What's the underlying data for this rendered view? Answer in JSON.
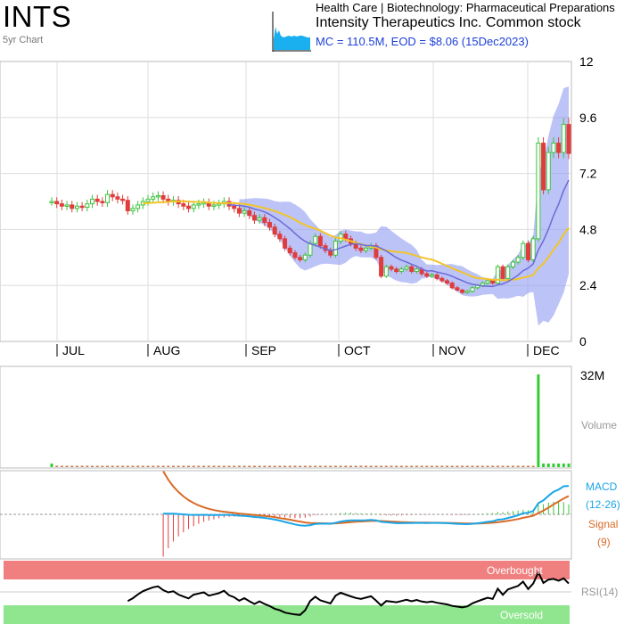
{
  "header": {
    "ticker": "INTS",
    "period_label": "5yr Chart",
    "sector": "Health Care | Biotechnology: Pharmaceutical Preparations",
    "company": "Intensity Therapeutics Inc. Common stock",
    "mc_line": "MC = 110.5M, EOD = $8.06 (15Dec2023)"
  },
  "chart_data": {
    "type": "candlestick",
    "price_axis": {
      "ticks": [
        "0",
        "2.4",
        "4.8",
        "7.2",
        "9.6",
        "12"
      ],
      "ylim": [
        0,
        12
      ]
    },
    "months": [
      "JUL",
      "AUG",
      "SEP",
      "OCT",
      "NOV",
      "DEC"
    ],
    "close_by_day": [
      6.0,
      5.9,
      5.8,
      5.85,
      5.7,
      5.8,
      5.75,
      5.9,
      6.1,
      6.0,
      5.95,
      6.3,
      6.2,
      6.1,
      6.05,
      5.6,
      5.7,
      5.85,
      6.0,
      6.1,
      6.2,
      6.25,
      6.1,
      6.0,
      6.05,
      5.9,
      5.8,
      5.7,
      5.85,
      5.9,
      5.95,
      5.8,
      5.85,
      5.9,
      6.0,
      5.8,
      5.7,
      5.5,
      5.6,
      5.4,
      5.2,
      5.3,
      5.1,
      4.9,
      4.6,
      4.4,
      4.0,
      3.8,
      3.6,
      3.5,
      3.7,
      4.2,
      4.5,
      4.1,
      3.9,
      3.7,
      4.3,
      4.6,
      4.4,
      4.2,
      4.0,
      3.9,
      4.0,
      4.1,
      3.6,
      2.8,
      3.2,
      3.1,
      3.0,
      3.1,
      3.2,
      3.0,
      3.1,
      2.9,
      2.8,
      2.85,
      2.7,
      2.6,
      2.5,
      2.3,
      2.2,
      2.1,
      2.15,
      2.3,
      2.4,
      2.5,
      2.6,
      2.5,
      3.2,
      2.7,
      3.2,
      3.4,
      3.6,
      4.2,
      3.5,
      4.4,
      8.5,
      6.5,
      8.1,
      8.5,
      8.1,
      9.3,
      8.06
    ],
    "series_labels": {
      "volume": "Volume",
      "macd": "MACD",
      "macd_params": "(12-26)",
      "signal": "Signal",
      "signal_params": "(9)",
      "rsi": "RSI(14)",
      "overbought": "Overbought",
      "oversold": "Oversold"
    },
    "volume_axis": {
      "max_label": "32M"
    },
    "volume_spike_day": 96,
    "colors": {
      "up": "#3bc43b",
      "down": "#e03c3c",
      "band": "#8f9bf2",
      "sma_short": "#6b6bd6",
      "sma_long": "#f2c42a",
      "macd": "#1aa6e8",
      "signal": "#d96b27",
      "overbought": "#f08080",
      "oversold": "#8fe68f",
      "volume": "#31cc31"
    }
  }
}
